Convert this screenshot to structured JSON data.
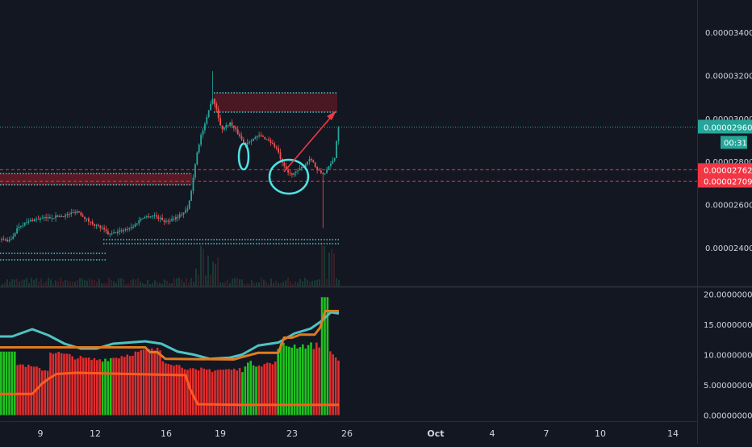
{
  "chart_data": [
    {
      "type": "candlestick",
      "pane": "price",
      "y_ticks": [
        "0.00003400",
        "0.00003200",
        "0.00003000",
        "0.00002800",
        "0.00002600",
        "0.00002400"
      ],
      "y_tick_values": [
        3.4e-05,
        3.2e-05,
        3e-05,
        2.8e-05,
        2.6e-05,
        2.4e-05
      ],
      "ylim": [
        2.22e-05,
        3.55e-05
      ],
      "x_ticks": [
        "9",
        "12",
        "16",
        "19",
        "23",
        "26",
        "Oct",
        "4",
        "7",
        "10",
        "14"
      ],
      "current_price": {
        "label": "0.00002960",
        "value": 2.96e-05,
        "color": "#26a69a",
        "countdown": "00:31"
      },
      "levels": [
        {
          "label": "0.00002762",
          "value": 2.762e-05,
          "color": "#f23645"
        },
        {
          "label": "0.00002709",
          "value": 2.709e-05,
          "color": "#f23645"
        }
      ],
      "up_color": "#26a69a",
      "down_color": "#ef5350",
      "grid": false
    },
    {
      "type": "bar+line",
      "pane": "indicator",
      "y_ticks": [
        "20.00000000",
        "15.00000000",
        "10.00000000",
        "5.00000000",
        "0.00000000"
      ],
      "y_tick_values": [
        20,
        15,
        10,
        5,
        0
      ],
      "ylim": [
        -1,
        21
      ],
      "bar_colors": {
        "down": "#e02c2c",
        "up": "#1fc11f"
      },
      "line_colors": [
        "#4fc3c3",
        "#e07b20",
        "#ff5a1f"
      ]
    }
  ]
}
